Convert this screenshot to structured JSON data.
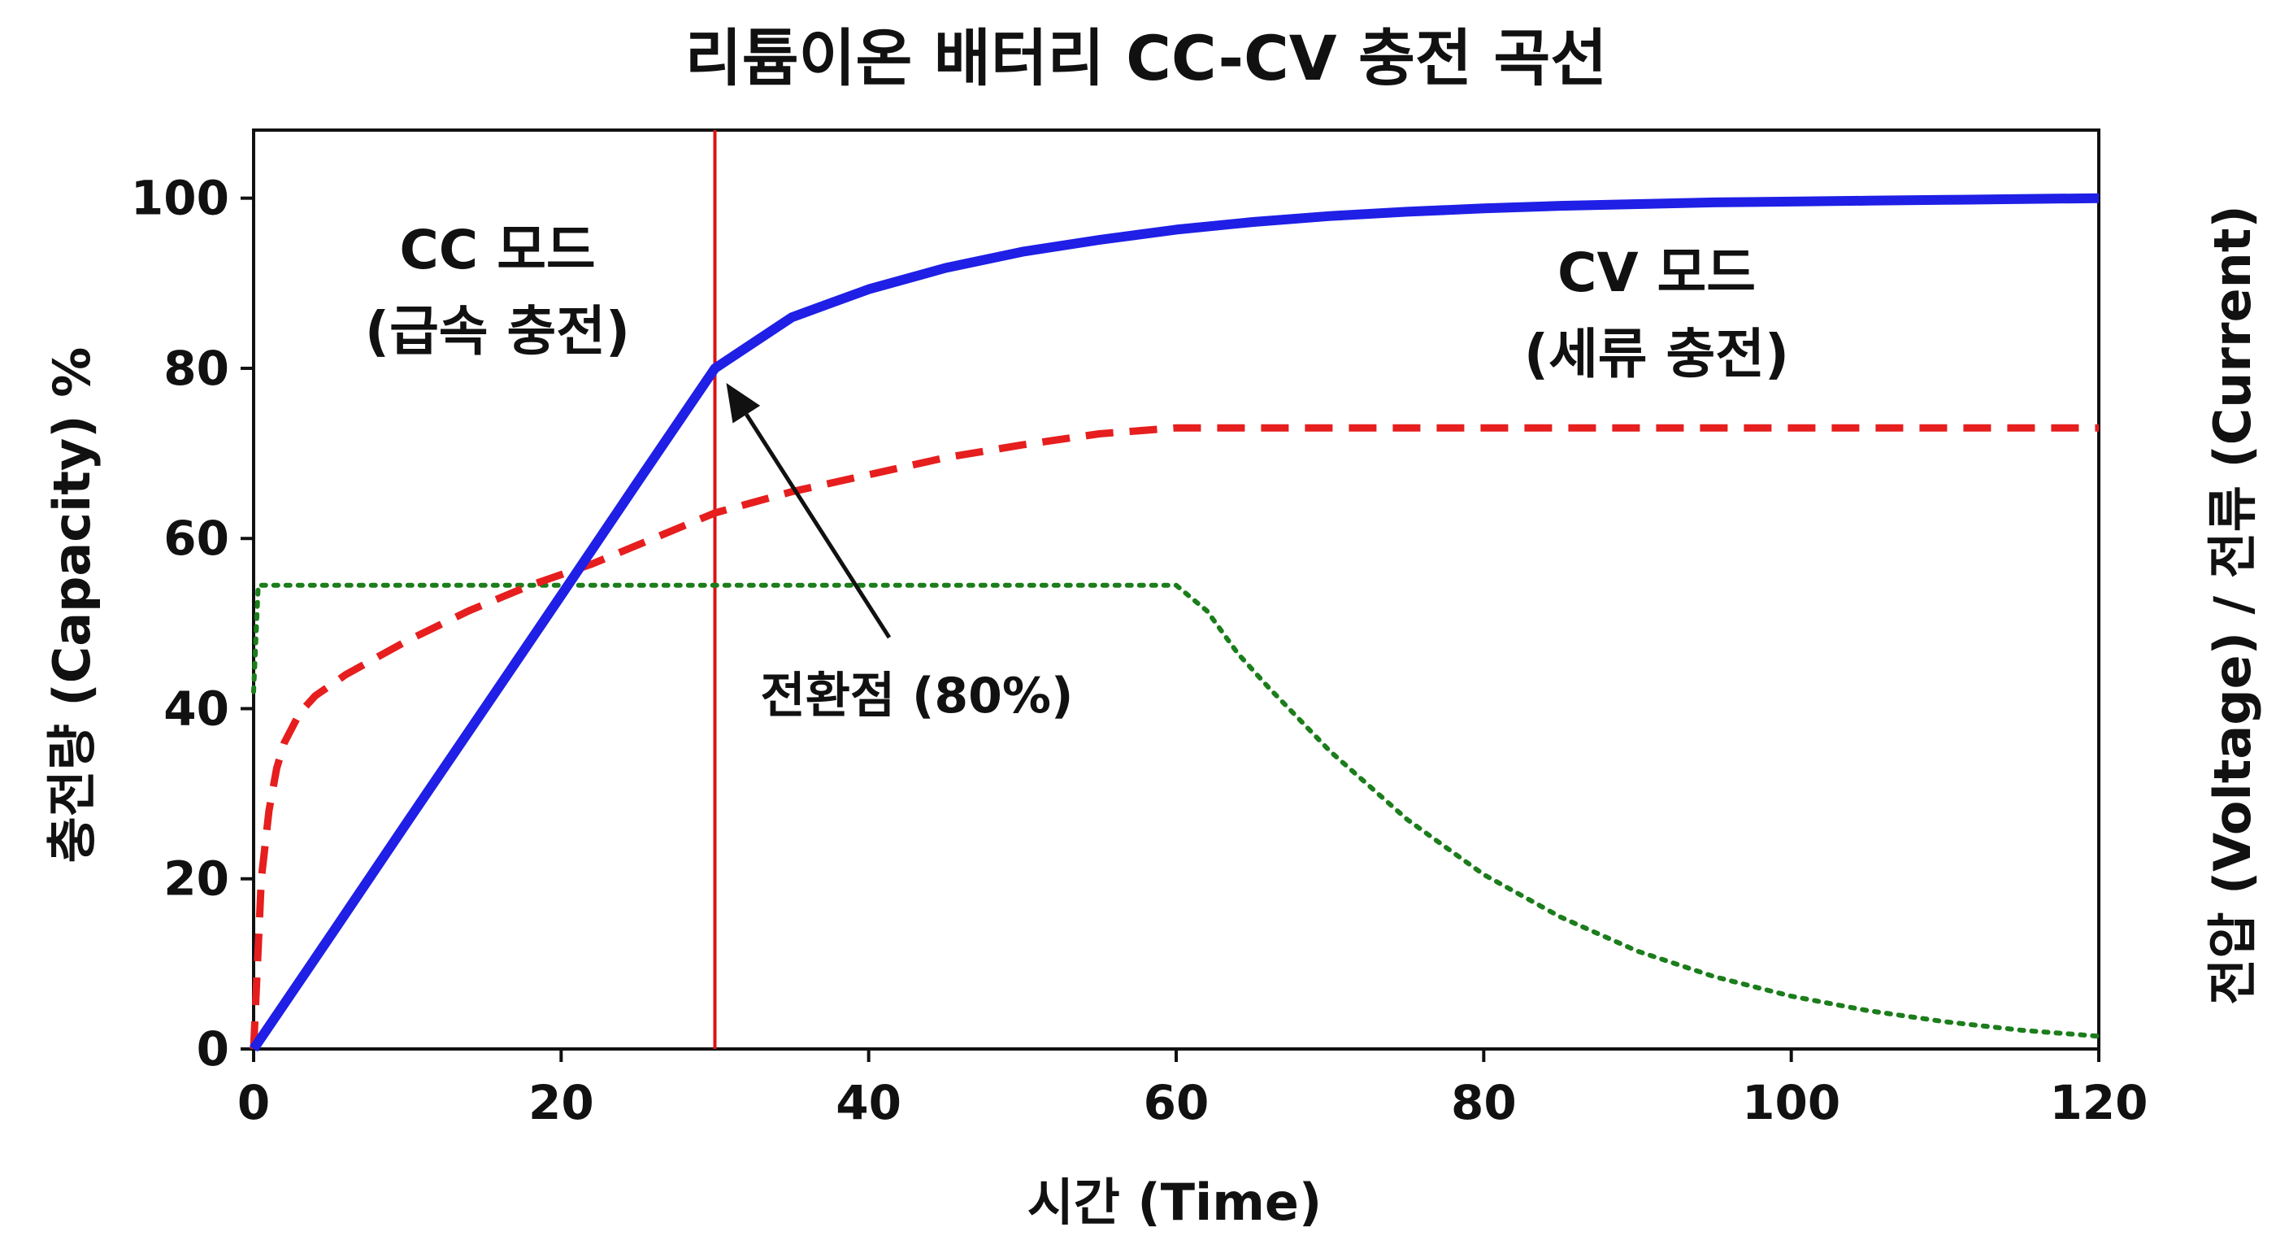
{
  "chart_data": {
    "type": "line",
    "title": "리튬이온 배터리 CC-CV 충전 곡선",
    "xlabel": "시간 (Time)",
    "ylabel": "충전량 (Capacity) %",
    "y2label": "전압 (Voltage) / 전류 (Current)",
    "xlim": [
      0,
      120
    ],
    "ylim": [
      0,
      108
    ],
    "x_ticks": [
      "0",
      "20",
      "40",
      "60",
      "80",
      "100",
      "120"
    ],
    "y_ticks": [
      "0",
      "20",
      "40",
      "60",
      "80",
      "100"
    ],
    "grid": false,
    "series": [
      {
        "style": "solid",
        "color": "#1f1fe6",
        "x": [
          0,
          5,
          10,
          15,
          20,
          25,
          30,
          35,
          40,
          45,
          50,
          55,
          60,
          65,
          70,
          75,
          80,
          85,
          90,
          95,
          100,
          105,
          110,
          115,
          120
        ],
        "y": [
          0,
          13.3,
          26.7,
          40,
          53.3,
          66.7,
          80,
          86,
          89.3,
          91.8,
          93.7,
          95.1,
          96.3,
          97.2,
          97.9,
          98.4,
          98.8,
          99.1,
          99.3,
          99.5,
          99.6,
          99.7,
          99.8,
          99.9,
          100
        ]
      },
      {
        "style": "dashed",
        "color": "#e61e1e",
        "x": [
          0,
          0.5,
          1,
          1.5,
          2,
          3,
          4,
          6,
          8,
          10,
          14,
          18,
          22,
          26,
          30,
          35,
          40,
          45,
          50,
          55,
          60,
          70,
          80,
          90,
          100,
          110,
          120
        ],
        "y": [
          0,
          20,
          28,
          33,
          36,
          39.5,
          41.5,
          44,
          46,
          48,
          51.5,
          54.5,
          57,
          60,
          63,
          65.5,
          67.5,
          69.5,
          71,
          72.3,
          73,
          73,
          73,
          73,
          73,
          73,
          73
        ]
      },
      {
        "style": "dotted",
        "color": "#1b7d1b",
        "x": [
          0,
          0.3,
          1,
          10,
          20,
          30,
          40,
          50,
          58,
          60,
          62,
          64,
          66,
          70,
          75,
          80,
          85,
          90,
          95,
          100,
          105,
          110,
          115,
          120
        ],
        "y": [
          42,
          54.5,
          54.5,
          54.5,
          54.5,
          54.5,
          54.5,
          54.5,
          54.5,
          54.5,
          51.5,
          46.5,
          42.5,
          35,
          27,
          20.5,
          15.5,
          11.5,
          8.5,
          6.2,
          4.5,
          3.2,
          2.2,
          1.5
        ]
      }
    ],
    "transition": {
      "x": 30,
      "y": 80,
      "color": "#dd1111"
    },
    "annotations": {
      "cc_mode": "CC 모드",
      "cc_desc": "(급속 충전)",
      "cv_mode": "CV 모드",
      "cv_desc": "(세류 충전)",
      "transition_label": "전환점 (80%)"
    }
  }
}
